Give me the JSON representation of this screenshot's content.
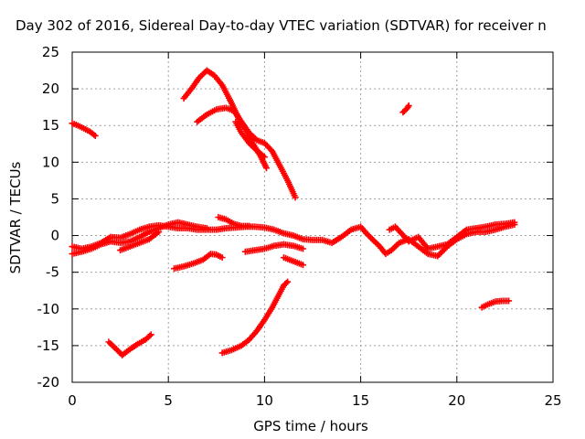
{
  "chart_data": {
    "type": "scatter",
    "title": "Day 302 of 2016, Sidereal Day-to-day VTEC variation (SDTVAR) for receiver n",
    "xlabel": "GPS time / hours",
    "ylabel": "SDTVAR / TECUs",
    "xlim": [
      0,
      25
    ],
    "ylim": [
      -20,
      25
    ],
    "xticks": [
      0,
      5,
      10,
      15,
      20,
      25
    ],
    "yticks": [
      -20,
      -15,
      -10,
      -5,
      0,
      5,
      10,
      15,
      20,
      25
    ],
    "grid": true,
    "marker": "plus",
    "series_color": "#ff0000",
    "series": [
      {
        "name": "upper-left",
        "points": [
          [
            0,
            15.3
          ],
          [
            0.3,
            15
          ],
          [
            0.6,
            14.6
          ],
          [
            0.9,
            14.2
          ],
          [
            1.2,
            13.6
          ]
        ]
      },
      {
        "name": "arc-high-a",
        "points": [
          [
            5.8,
            18.7
          ],
          [
            6.2,
            20
          ],
          [
            6.6,
            21.5
          ],
          [
            7,
            22.5
          ],
          [
            7.4,
            21.8
          ],
          [
            7.8,
            20.5
          ],
          [
            8.2,
            18.5
          ],
          [
            8.6,
            16.3
          ],
          [
            9,
            14.5
          ],
          [
            9.4,
            12.5
          ],
          [
            9.8,
            10.8
          ],
          [
            10.1,
            9.2
          ]
        ]
      },
      {
        "name": "arc-high-b",
        "points": [
          [
            6.5,
            15.5
          ],
          [
            7,
            16.5
          ],
          [
            7.5,
            17.2
          ],
          [
            8,
            17.4
          ],
          [
            8.4,
            17
          ],
          [
            8.8,
            15.5
          ],
          [
            9.2,
            14
          ],
          [
            9.6,
            13
          ],
          [
            10,
            12.6
          ],
          [
            10.4,
            11.5
          ],
          [
            10.8,
            9.5
          ],
          [
            11.2,
            7.5
          ],
          [
            11.6,
            5.2
          ]
        ]
      },
      {
        "name": "arc-high-c",
        "points": [
          [
            8.5,
            15.5
          ],
          [
            8.8,
            14
          ],
          [
            9.2,
            12.6
          ],
          [
            9.6,
            11.6
          ],
          [
            10,
            10.7
          ]
        ]
      },
      {
        "name": "mid-band-1",
        "points": [
          [
            0,
            -1.5
          ],
          [
            0.5,
            -1.8
          ],
          [
            1,
            -1.5
          ],
          [
            1.5,
            -1
          ],
          [
            2,
            -0.2
          ],
          [
            2.5,
            -0.3
          ],
          [
            3,
            0.2
          ],
          [
            3.5,
            0.8
          ],
          [
            4,
            1.2
          ],
          [
            4.5,
            1.4
          ],
          [
            5,
            1.2
          ],
          [
            5.5,
            1
          ],
          [
            6,
            1
          ],
          [
            6.5,
            0.8
          ],
          [
            7,
            0.8
          ],
          [
            7.5,
            0.8
          ],
          [
            8,
            1
          ],
          [
            8.5,
            1.1
          ],
          [
            9,
            1.2
          ],
          [
            9.5,
            1.2
          ],
          [
            10,
            1.1
          ],
          [
            10.5,
            0.8
          ],
          [
            11,
            0.3
          ],
          [
            11.5,
            0
          ],
          [
            12,
            -0.5
          ],
          [
            12.5,
            -0.6
          ],
          [
            13,
            -0.6
          ],
          [
            13.5,
            -1
          ],
          [
            14,
            -0.2
          ],
          [
            14.5,
            0.8
          ],
          [
            15,
            1.2
          ],
          [
            15.3,
            0.3
          ],
          [
            15.6,
            -0.5
          ],
          [
            16,
            -1.5
          ],
          [
            16.3,
            -2.5
          ],
          [
            16.6,
            -2
          ],
          [
            17,
            -1
          ],
          [
            17.5,
            -0.5
          ],
          [
            18,
            -1.5
          ],
          [
            18.5,
            -2.5
          ],
          [
            19,
            -2.8
          ],
          [
            19.5,
            -1.5
          ],
          [
            20,
            -0.5
          ],
          [
            20.5,
            0.2
          ],
          [
            21,
            0.5
          ],
          [
            21.5,
            0.5
          ],
          [
            22,
            0.8
          ],
          [
            22.5,
            1.2
          ],
          [
            23,
            1.5
          ]
        ]
      },
      {
        "name": "mid-band-2",
        "points": [
          [
            0,
            -2.5
          ],
          [
            0.5,
            -2.2
          ],
          [
            1,
            -1.8
          ],
          [
            1.5,
            -1.2
          ],
          [
            2,
            -0.8
          ],
          [
            2.5,
            -1
          ],
          [
            3,
            -0.8
          ],
          [
            3.5,
            -0.2
          ],
          [
            4,
            0.5
          ],
          [
            4.5,
            1
          ],
          [
            5,
            1.5
          ],
          [
            5.5,
            1.8
          ],
          [
            6,
            1.5
          ],
          [
            6.5,
            1.2
          ],
          [
            7,
            1
          ]
        ]
      },
      {
        "name": "mid-band-3",
        "points": [
          [
            2.5,
            -2
          ],
          [
            3,
            -1.5
          ],
          [
            3.5,
            -1
          ],
          [
            4,
            -0.5
          ],
          [
            4.5,
            0.5
          ]
        ]
      },
      {
        "name": "rise-7-9",
        "points": [
          [
            7.6,
            2.5
          ],
          [
            8,
            2.2
          ],
          [
            8.4,
            1.6
          ],
          [
            8.8,
            1.3
          ],
          [
            9.2,
            1.3
          ]
        ]
      },
      {
        "name": "low-band",
        "points": [
          [
            9,
            -2.2
          ],
          [
            9.5,
            -2
          ],
          [
            10,
            -1.8
          ],
          [
            10.5,
            -1.4
          ],
          [
            11,
            -1.2
          ],
          [
            11.5,
            -1.4
          ],
          [
            12,
            -1.8
          ]
        ]
      },
      {
        "name": "band-11-12",
        "points": [
          [
            11,
            -3
          ],
          [
            11.3,
            -3.3
          ],
          [
            11.6,
            -3.6
          ],
          [
            12,
            -4
          ]
        ]
      },
      {
        "name": "neg-arc-a",
        "points": [
          [
            5.3,
            -4.5
          ],
          [
            5.8,
            -4.2
          ],
          [
            6.3,
            -3.8
          ],
          [
            6.8,
            -3.3
          ],
          [
            7.2,
            -2.5
          ],
          [
            7.5,
            -2.6
          ],
          [
            7.8,
            -3
          ]
        ]
      },
      {
        "name": "neg-arc-b",
        "points": [
          [
            1.9,
            -14.5
          ],
          [
            2.3,
            -15.5
          ],
          [
            2.6,
            -16.3
          ],
          [
            3,
            -15.5
          ],
          [
            3.4,
            -14.8
          ],
          [
            3.8,
            -14.2
          ],
          [
            4.1,
            -13.5
          ]
        ]
      },
      {
        "name": "neg-rise",
        "points": [
          [
            7.8,
            -16
          ],
          [
            8.3,
            -15.6
          ],
          [
            8.8,
            -15
          ],
          [
            9.2,
            -14.2
          ],
          [
            9.6,
            -13
          ],
          [
            10,
            -11.5
          ],
          [
            10.4,
            -9.8
          ],
          [
            10.7,
            -8.3
          ],
          [
            11,
            -6.8
          ],
          [
            11.2,
            -6.3
          ]
        ]
      },
      {
        "name": "isolated-17",
        "points": [
          [
            17.2,
            16.8
          ],
          [
            17.4,
            17.3
          ],
          [
            17.5,
            17.7
          ]
        ]
      },
      {
        "name": "late-neg",
        "points": [
          [
            21.3,
            -9.8
          ],
          [
            21.6,
            -9.4
          ],
          [
            22,
            -9
          ],
          [
            22.4,
            -8.9
          ],
          [
            22.7,
            -8.9
          ]
        ]
      },
      {
        "name": "late-band-2",
        "points": [
          [
            16.5,
            0.8
          ],
          [
            16.8,
            1.2
          ],
          [
            17.5,
            -0.8
          ],
          [
            18,
            -0.2
          ],
          [
            18.5,
            -1.8
          ],
          [
            19.5,
            -1.2
          ],
          [
            20.5,
            0.8
          ],
          [
            21,
            1
          ],
          [
            21.5,
            1.2
          ],
          [
            22,
            1.5
          ],
          [
            22.5,
            1.6
          ],
          [
            23,
            1.8
          ]
        ]
      }
    ]
  }
}
